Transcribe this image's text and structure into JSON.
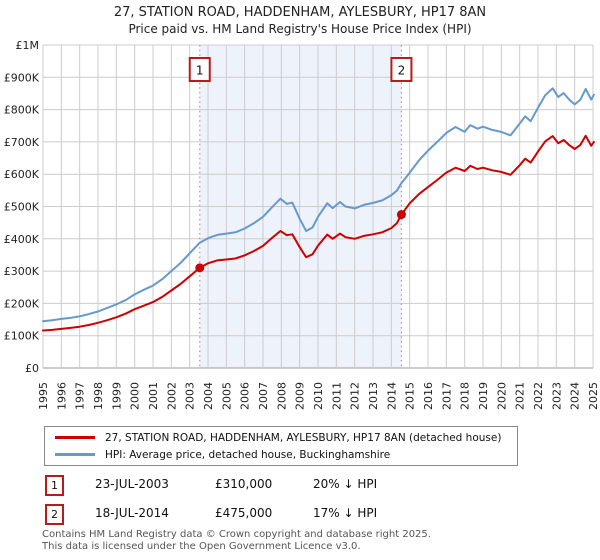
{
  "title": {
    "line1": "27, STATION ROAD, HADDENHAM, AYLESBURY, HP17 8AN",
    "line2": "Price paid vs. HM Land Registry's House Price Index (HPI)"
  },
  "chart_data": {
    "type": "line",
    "xlabel": "",
    "ylabel": "",
    "xlim": [
      1995,
      2025.15
    ],
    "ylim": [
      0,
      1000000
    ],
    "grid": true,
    "legend_position": "bottom",
    "x_ticks": [
      1995,
      1996,
      1997,
      1998,
      1999,
      2000,
      2001,
      2002,
      2003,
      2004,
      2005,
      2006,
      2007,
      2008,
      2009,
      2010,
      2011,
      2012,
      2013,
      2014,
      2015,
      2016,
      2017,
      2018,
      2019,
      2020,
      2021,
      2022,
      2023,
      2024,
      2025
    ],
    "y_ticks": [
      {
        "v": 0,
        "label": "£0"
      },
      {
        "v": 100,
        "label": "£100K"
      },
      {
        "v": 200,
        "label": "£200K"
      },
      {
        "v": 300,
        "label": "£300K"
      },
      {
        "v": 400,
        "label": "£400K"
      },
      {
        "v": 500,
        "label": "£500K"
      },
      {
        "v": 600,
        "label": "£600K"
      },
      {
        "v": 700,
        "label": "£700K"
      },
      {
        "v": 800,
        "label": "£800K"
      },
      {
        "v": 900,
        "label": "£900K"
      },
      {
        "v": 1000,
        "label": "£1M"
      }
    ],
    "x": [
      1995,
      1995.5,
      1996,
      1996.5,
      1997,
      1997.5,
      1998,
      1998.5,
      1999,
      1999.5,
      2000,
      2000.5,
      2001,
      2001.5,
      2002,
      2002.5,
      2003,
      2003.55,
      2004,
      2004.5,
      2005,
      2005.5,
      2006,
      2006.5,
      2007,
      2007.5,
      2007.95,
      2008.3,
      2008.6,
      2009,
      2009.35,
      2009.7,
      2010,
      2010.5,
      2010.8,
      2011.2,
      2011.5,
      2012,
      2012.5,
      2013,
      2013.5,
      2014,
      2014.3,
      2014.55,
      2015,
      2015.5,
      2016,
      2016.5,
      2017,
      2017.5,
      2018,
      2018.3,
      2018.7,
      2019,
      2019.5,
      2020,
      2020.5,
      2021,
      2021.3,
      2021.6,
      2022,
      2022.4,
      2022.8,
      2023.1,
      2023.4,
      2023.7,
      2024,
      2024.3,
      2024.6,
      2024.9,
      2025.05
    ],
    "series": [
      {
        "name": "hpi",
        "label": "HPI: Average price, detached house, Buckinghamshire",
        "color": "#6699cc",
        "values_gbp_k": [
          145,
          148,
          152,
          155,
          160,
          167,
          175,
          186,
          197,
          210,
          228,
          242,
          255,
          275,
          300,
          325,
          355,
          388,
          402,
          412,
          416,
          420,
          432,
          448,
          468,
          498,
          524,
          508,
          512,
          462,
          424,
          435,
          468,
          510,
          495,
          514,
          500,
          494,
          505,
          511,
          519,
          535,
          549,
          572,
          605,
          642,
          673,
          700,
          728,
          746,
          731,
          752,
          741,
          747,
          737,
          731,
          720,
          757,
          779,
          764,
          806,
          845,
          866,
          839,
          851,
          831,
          816,
          830,
          864,
          831,
          846
        ]
      },
      {
        "name": "price-paid",
        "label": "27, STATION ROAD, HADDENHAM, AYLESBURY, HP17 8AN (detached house)",
        "color": "#cc0000",
        "values_gbp_k": [
          116,
          118,
          121,
          124,
          128,
          133,
          140,
          148,
          157,
          168,
          182,
          193,
          204,
          220,
          240,
          260,
          284,
          310,
          324,
          333,
          336,
          339,
          349,
          362,
          378,
          403,
          424,
          411,
          414,
          374,
          343,
          352,
          379,
          413,
          400,
          416,
          405,
          400,
          409,
          414,
          420,
          433,
          448,
          475,
          510,
          538,
          560,
          582,
          605,
          620,
          610,
          626,
          616,
          620,
          612,
          607,
          598,
          628,
          648,
          636,
          670,
          702,
          718,
          696,
          706,
          690,
          678,
          690,
          719,
          688,
          700
        ]
      }
    ],
    "sales": [
      {
        "n": "1",
        "x": 2003.55,
        "value_k": 310
      },
      {
        "n": "2",
        "x": 2014.55,
        "value_k": 475
      }
    ],
    "shaded_region": [
      2003.55,
      2014.55
    ],
    "colors": {
      "grid": "#cccccc",
      "axis": "#999999",
      "band": "#edf2fb",
      "dashed": "#f47c7c",
      "marker_box_border": "#b71c1c",
      "tick_text": "#222222"
    }
  },
  "legend": {
    "entries": [
      {
        "label": "27, STATION ROAD, HADDENHAM, AYLESBURY, HP17 8AN (detached house)",
        "color": "#cc0000"
      },
      {
        "label": "HPI: Average price, detached house, Buckinghamshire",
        "color": "#6699cc"
      }
    ]
  },
  "transactions": [
    {
      "n": "1",
      "date": "23-JUL-2003",
      "price": "£310,000",
      "vs_hpi": "20% ↓ HPI"
    },
    {
      "n": "2",
      "date": "18-JUL-2014",
      "price": "£475,000",
      "vs_hpi": "17% ↓ HPI"
    }
  ],
  "footer": {
    "line1": "Contains HM Land Registry data © Crown copyright and database right 2025.",
    "line2": "This data is licensed under the Open Government Licence v3.0."
  }
}
